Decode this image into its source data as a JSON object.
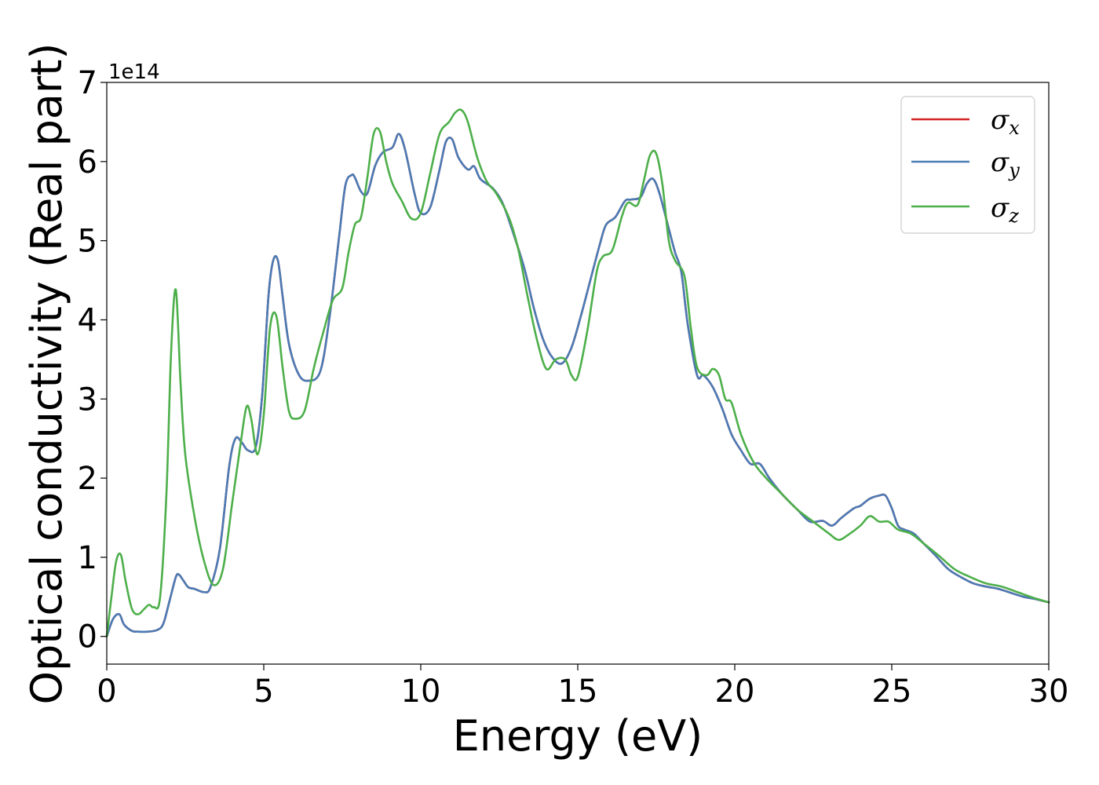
{
  "chart_data": {
    "type": "line",
    "title": "",
    "xlabel": "Energy (eV)",
    "ylabel": "Optical conductivity (Real part)",
    "y_offset_label": "1e14",
    "xlim": [
      0,
      30
    ],
    "ylim": [
      -0.35,
      7.0
    ],
    "xticks": [
      0,
      5,
      10,
      15,
      20,
      25,
      30
    ],
    "yticks": [
      0,
      1,
      2,
      3,
      4,
      5,
      6,
      7
    ],
    "grid": false,
    "legend_position": "top-right",
    "series": [
      {
        "name": "σx",
        "symbol": "σ",
        "subscript": "x",
        "color": "#d62728",
        "x": [
          0,
          0.2,
          0.4,
          0.55,
          0.8,
          1.0,
          1.3,
          1.6,
          1.8,
          2.0,
          2.2,
          2.3,
          2.45,
          2.6,
          2.8,
          3.1,
          3.3,
          3.6,
          3.9,
          4.1,
          4.3,
          4.5,
          4.75,
          4.95,
          5.15,
          5.3,
          5.45,
          5.6,
          5.8,
          6.1,
          6.4,
          6.8,
          7.1,
          7.4,
          7.6,
          7.8,
          7.9,
          8.1,
          8.3,
          8.55,
          8.8,
          9.1,
          9.3,
          9.5,
          9.8,
          10.0,
          10.3,
          10.6,
          10.8,
          11.0,
          11.2,
          11.5,
          11.7,
          11.9,
          12.3,
          12.6,
          12.9,
          13.3,
          13.6,
          13.9,
          14.2,
          14.5,
          14.8,
          15.1,
          15.4,
          15.7,
          15.9,
          16.2,
          16.5,
          16.7,
          17.0,
          17.2,
          17.4,
          17.6,
          17.9,
          18.1,
          18.3,
          18.5,
          18.8,
          19.0,
          19.3,
          19.6,
          19.9,
          20.2,
          20.5,
          20.8,
          21.1,
          21.5,
          22.0,
          22.4,
          22.8,
          23.1,
          23.4,
          23.8,
          24.0,
          24.3,
          24.6,
          24.8,
          25.0,
          25.2,
          25.4,
          25.7,
          26.0,
          26.4,
          26.8,
          27.2,
          27.6,
          28.0,
          28.4,
          28.8,
          29.2,
          29.6,
          30.0
        ],
        "y": [
          0.0,
          0.22,
          0.28,
          0.15,
          0.07,
          0.06,
          0.06,
          0.08,
          0.16,
          0.45,
          0.75,
          0.78,
          0.7,
          0.62,
          0.6,
          0.56,
          0.62,
          1.1,
          2.15,
          2.5,
          2.45,
          2.35,
          2.4,
          3.05,
          4.3,
          4.75,
          4.75,
          4.3,
          3.7,
          3.32,
          3.23,
          3.35,
          4.05,
          5.05,
          5.7,
          5.83,
          5.8,
          5.62,
          5.6,
          5.95,
          6.12,
          6.18,
          6.35,
          6.15,
          5.6,
          5.35,
          5.42,
          5.9,
          6.25,
          6.28,
          6.05,
          5.9,
          5.94,
          5.78,
          5.66,
          5.48,
          5.15,
          4.65,
          4.15,
          3.75,
          3.52,
          3.45,
          3.65,
          4.05,
          4.5,
          4.95,
          5.2,
          5.3,
          5.5,
          5.52,
          5.55,
          5.72,
          5.78,
          5.6,
          5.15,
          4.85,
          4.6,
          3.95,
          3.3,
          3.3,
          3.15,
          2.88,
          2.55,
          2.35,
          2.18,
          2.18,
          2.0,
          1.8,
          1.6,
          1.45,
          1.46,
          1.4,
          1.5,
          1.62,
          1.65,
          1.74,
          1.78,
          1.78,
          1.62,
          1.4,
          1.35,
          1.3,
          1.18,
          1.02,
          0.85,
          0.75,
          0.67,
          0.63,
          0.6,
          0.55,
          0.5,
          0.47,
          0.43
        ]
      },
      {
        "name": "σy",
        "symbol": "σ",
        "subscript": "y",
        "color": "#4a7bb5",
        "x": [
          0,
          0.2,
          0.4,
          0.55,
          0.8,
          1.0,
          1.3,
          1.6,
          1.8,
          2.0,
          2.2,
          2.3,
          2.45,
          2.6,
          2.8,
          3.1,
          3.3,
          3.6,
          3.9,
          4.1,
          4.3,
          4.5,
          4.75,
          4.95,
          5.15,
          5.3,
          5.45,
          5.6,
          5.8,
          6.1,
          6.4,
          6.8,
          7.1,
          7.4,
          7.6,
          7.8,
          7.9,
          8.1,
          8.3,
          8.55,
          8.8,
          9.1,
          9.3,
          9.5,
          9.8,
          10.0,
          10.3,
          10.6,
          10.8,
          11.0,
          11.2,
          11.5,
          11.7,
          11.9,
          12.3,
          12.6,
          12.9,
          13.3,
          13.6,
          13.9,
          14.2,
          14.5,
          14.8,
          15.1,
          15.4,
          15.7,
          15.9,
          16.2,
          16.5,
          16.7,
          17.0,
          17.2,
          17.4,
          17.6,
          17.9,
          18.1,
          18.3,
          18.5,
          18.8,
          19.0,
          19.3,
          19.6,
          19.9,
          20.2,
          20.5,
          20.8,
          21.1,
          21.5,
          22.0,
          22.4,
          22.8,
          23.1,
          23.4,
          23.8,
          24.0,
          24.3,
          24.6,
          24.8,
          25.0,
          25.2,
          25.4,
          25.7,
          26.0,
          26.4,
          26.8,
          27.2,
          27.6,
          28.0,
          28.4,
          28.8,
          29.2,
          29.6,
          30.0
        ],
        "y": [
          0.0,
          0.22,
          0.28,
          0.15,
          0.07,
          0.06,
          0.06,
          0.08,
          0.16,
          0.45,
          0.75,
          0.78,
          0.7,
          0.62,
          0.6,
          0.56,
          0.62,
          1.1,
          2.15,
          2.5,
          2.45,
          2.35,
          2.4,
          3.05,
          4.3,
          4.75,
          4.75,
          4.3,
          3.7,
          3.32,
          3.23,
          3.35,
          4.05,
          5.05,
          5.7,
          5.83,
          5.8,
          5.62,
          5.6,
          5.95,
          6.12,
          6.18,
          6.35,
          6.15,
          5.6,
          5.35,
          5.42,
          5.9,
          6.25,
          6.28,
          6.05,
          5.9,
          5.94,
          5.78,
          5.66,
          5.48,
          5.15,
          4.65,
          4.15,
          3.75,
          3.52,
          3.45,
          3.65,
          4.05,
          4.5,
          4.95,
          5.2,
          5.3,
          5.5,
          5.52,
          5.55,
          5.72,
          5.78,
          5.6,
          5.15,
          4.85,
          4.6,
          3.95,
          3.3,
          3.3,
          3.15,
          2.88,
          2.55,
          2.35,
          2.18,
          2.18,
          2.0,
          1.8,
          1.6,
          1.45,
          1.46,
          1.4,
          1.5,
          1.62,
          1.65,
          1.74,
          1.78,
          1.78,
          1.62,
          1.4,
          1.35,
          1.3,
          1.18,
          1.02,
          0.85,
          0.75,
          0.67,
          0.63,
          0.6,
          0.55,
          0.5,
          0.47,
          0.43
        ]
      },
      {
        "name": "σz",
        "symbol": "σ",
        "subscript": "z",
        "color": "#4daf4a",
        "x": [
          0,
          0.15,
          0.3,
          0.45,
          0.6,
          0.8,
          1.0,
          1.2,
          1.35,
          1.5,
          1.7,
          1.9,
          2.05,
          2.2,
          2.35,
          2.5,
          2.8,
          3.1,
          3.4,
          3.7,
          4.0,
          4.25,
          4.45,
          4.6,
          4.8,
          5.0,
          5.2,
          5.4,
          5.6,
          5.8,
          6.0,
          6.3,
          6.6,
          6.9,
          7.2,
          7.5,
          7.7,
          7.9,
          8.1,
          8.3,
          8.5,
          8.7,
          8.9,
          9.1,
          9.4,
          9.7,
          10.0,
          10.3,
          10.6,
          10.9,
          11.1,
          11.3,
          11.5,
          11.8,
          12.1,
          12.4,
          12.8,
          13.1,
          13.4,
          13.7,
          14.0,
          14.3,
          14.6,
          14.8,
          15.0,
          15.3,
          15.6,
          15.8,
          16.1,
          16.4,
          16.6,
          16.9,
          17.1,
          17.3,
          17.5,
          17.7,
          17.9,
          18.1,
          18.4,
          18.6,
          18.8,
          19.1,
          19.3,
          19.5,
          19.7,
          19.9,
          20.2,
          20.6,
          21.0,
          21.5,
          22.0,
          22.5,
          23.0,
          23.3,
          23.6,
          24.0,
          24.3,
          24.6,
          24.9,
          25.2,
          25.6,
          26.0,
          26.5,
          27.0,
          27.5,
          28.0,
          28.5,
          29.0,
          29.5,
          30.0
        ],
        "y": [
          0.0,
          0.5,
          0.95,
          1.03,
          0.7,
          0.35,
          0.28,
          0.35,
          0.4,
          0.37,
          0.5,
          1.8,
          3.6,
          4.38,
          3.2,
          2.3,
          1.5,
          0.95,
          0.65,
          0.85,
          1.7,
          2.4,
          2.9,
          2.75,
          2.3,
          2.8,
          3.9,
          4.05,
          3.4,
          2.85,
          2.75,
          2.85,
          3.4,
          3.85,
          4.25,
          4.4,
          4.85,
          5.2,
          5.3,
          5.8,
          6.35,
          6.38,
          6.0,
          5.72,
          5.5,
          5.28,
          5.35,
          5.85,
          6.35,
          6.5,
          6.62,
          6.65,
          6.5,
          6.05,
          5.75,
          5.6,
          5.3,
          4.9,
          4.3,
          3.75,
          3.38,
          3.5,
          3.5,
          3.3,
          3.28,
          3.85,
          4.6,
          4.8,
          4.88,
          5.3,
          5.48,
          5.45,
          5.75,
          6.08,
          6.1,
          5.7,
          5.0,
          4.75,
          4.55,
          3.9,
          3.4,
          3.3,
          3.38,
          3.3,
          3.0,
          2.95,
          2.55,
          2.2,
          2.0,
          1.8,
          1.6,
          1.45,
          1.3,
          1.22,
          1.28,
          1.4,
          1.52,
          1.45,
          1.45,
          1.35,
          1.3,
          1.18,
          1.02,
          0.85,
          0.75,
          0.67,
          0.63,
          0.56,
          0.49,
          0.43
        ]
      }
    ]
  }
}
